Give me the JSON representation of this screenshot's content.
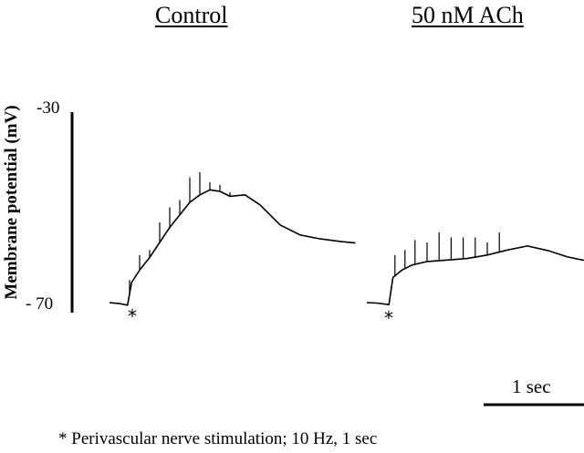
{
  "chart_data": {
    "type": "line",
    "panels": [
      {
        "title": "Control"
      },
      {
        "title": "50 nM ACh"
      }
    ],
    "ylabel": "Membrane potential (mV)",
    "yticks": [
      "-30",
      "- 70"
    ],
    "ylim": [
      -70,
      -30
    ],
    "scalebar": {
      "label": "1 sec",
      "duration_s": 1
    },
    "stimulus_marker": "*",
    "footnote": "* Perivascular nerve stimulation;  10 Hz, 1 sec",
    "series": [
      {
        "name": "Control",
        "t_s": [
          0.0,
          0.1,
          0.18,
          0.22,
          0.3,
          0.4,
          0.5,
          0.6,
          0.7,
          0.8,
          0.9,
          1.0,
          1.1,
          1.2,
          1.35,
          1.5,
          1.7,
          1.9,
          2.1,
          2.3,
          2.45
        ],
        "mV": [
          -68.0,
          -68.2,
          -68.5,
          -64.0,
          -61.5,
          -59.0,
          -56.0,
          -53.0,
          -50.5,
          -48.0,
          -46.5,
          -45.5,
          -45.8,
          -46.8,
          -46.5,
          -48.5,
          -52.5,
          -54.5,
          -55.3,
          -55.8,
          -56.1
        ],
        "spike_times_s": [
          0.2,
          0.3,
          0.4,
          0.5,
          0.6,
          0.7,
          0.8,
          0.9,
          1.0,
          1.1,
          1.2
        ],
        "spike_peaks_mV": [
          -63.5,
          -58.5,
          -57.5,
          -52.0,
          -49.0,
          -47.5,
          -43.0,
          -42.0,
          -44.0,
          -44.5,
          -46.0
        ]
      },
      {
        "name": "50 nM ACh",
        "t_s": [
          0.0,
          0.1,
          0.22,
          0.26,
          0.35,
          0.45,
          0.6,
          0.8,
          1.0,
          1.2,
          1.4,
          1.6,
          1.8,
          2.0,
          2.2,
          2.45
        ],
        "mV": [
          -68.0,
          -68.1,
          -68.4,
          -63.0,
          -61.5,
          -60.5,
          -59.8,
          -59.5,
          -59.2,
          -58.5,
          -57.5,
          -56.7,
          -57.6,
          -58.9,
          -59.7,
          -60.3
        ],
        "spike_times_s": [
          0.28,
          0.38,
          0.48,
          0.6,
          0.72,
          0.84,
          0.96,
          1.08,
          1.2,
          1.32
        ],
        "spike_peaks_mV": [
          -58.5,
          -57.5,
          -55.5,
          -56.0,
          -54.0,
          -55.0,
          -55.0,
          -55.0,
          -56.0,
          -54.0
        ]
      }
    ]
  }
}
